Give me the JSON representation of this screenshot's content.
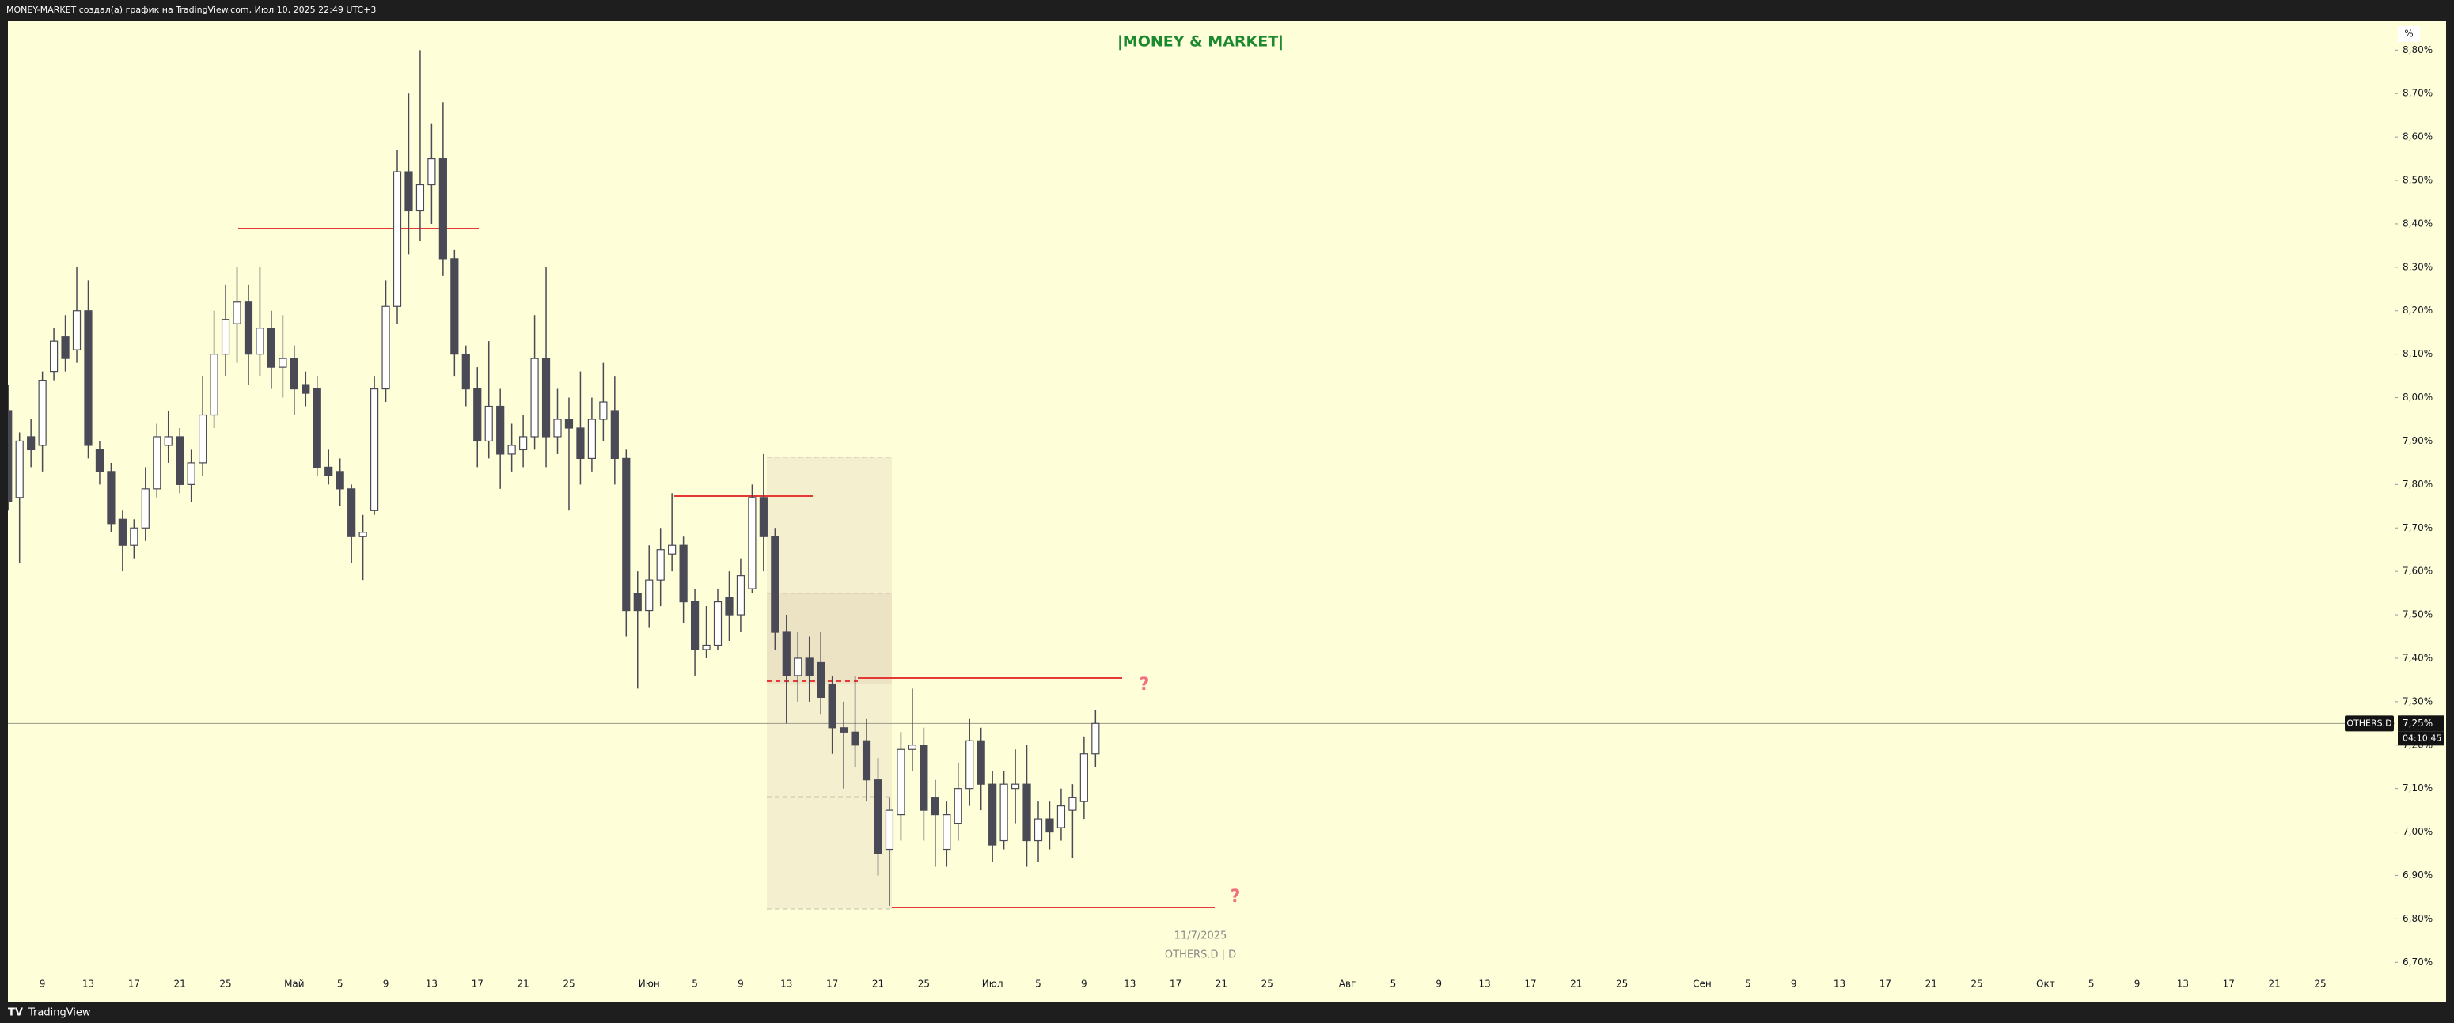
{
  "header": {
    "text": "MONEY-MARKET создал(а) график на TradingView.com, Июл 10, 2025 22:49 UTC+3"
  },
  "footer": {
    "logo": "TradingView"
  },
  "chart_data": {
    "type": "candlestick",
    "title": "|MONEY & MARKET|",
    "symbol": "OTHERS.D",
    "watermark": "OTHERS.D | D",
    "date_label": "11/7/2025",
    "countdown": "04:10:45",
    "unit": "%",
    "annotations": [
      "?",
      "?"
    ],
    "up_color": "#ffffff",
    "down_color": "#4a4a57",
    "grid": false,
    "categories": [
      null,
      null,
      null,
      "9",
      null,
      null,
      null,
      "13",
      null,
      null,
      null,
      "17",
      null,
      null,
      null,
      "21",
      null,
      null,
      null,
      "25",
      null,
      null,
      null,
      null,
      null,
      "Май",
      null,
      null,
      null,
      "5",
      null,
      null,
      null,
      "9",
      null,
      null,
      null,
      "13",
      null,
      null,
      null,
      "17",
      null,
      null,
      null,
      "21",
      null,
      null,
      null,
      "25",
      null,
      null,
      null,
      null,
      null,
      null,
      "Июн",
      null,
      null,
      null,
      "5",
      null,
      null,
      null,
      "9",
      null,
      null,
      null,
      "13",
      null,
      null,
      null,
      "17",
      null,
      null,
      null,
      "21",
      null,
      null,
      null,
      "25",
      null,
      null,
      null,
      null,
      null,
      "Июл",
      null,
      null,
      null,
      "5",
      null,
      null,
      null,
      "9",
      null,
      null,
      null,
      "13",
      null,
      null,
      null,
      "17",
      null,
      null,
      null,
      "21",
      null,
      null,
      null,
      "25",
      null,
      null,
      null,
      null,
      null,
      null,
      "Авг",
      null,
      null,
      null,
      "5",
      null,
      null,
      null,
      "9",
      null,
      null,
      null,
      "13",
      null,
      null,
      null,
      "17",
      null,
      null,
      null,
      "21",
      null,
      null,
      null,
      "25",
      null,
      null,
      null,
      null,
      null,
      null,
      "Сен",
      null,
      null,
      null,
      "5",
      null,
      null,
      null,
      "9",
      null,
      null,
      null,
      "13",
      null,
      null,
      null,
      "17",
      null,
      null,
      null,
      "21",
      null,
      null,
      null,
      "25",
      null,
      null,
      null,
      null,
      null,
      "Окт",
      null,
      null,
      null,
      "5",
      null,
      null,
      null,
      "9",
      null,
      null,
      null,
      "13",
      null,
      null,
      null,
      "17",
      null,
      null,
      null,
      "21",
      null,
      null,
      null,
      "25",
      null,
      null,
      null,
      null,
      null,
      null
    ],
    "open": [
      7.97,
      7.77,
      7.91,
      7.89,
      8.06,
      8.14,
      8.11,
      8.2,
      7.88,
      7.83,
      7.72,
      7.66,
      7.7,
      7.79,
      7.89,
      7.91,
      7.8,
      7.85,
      7.96,
      8.1,
      8.17,
      8.22,
      8.1,
      8.16,
      8.07,
      8.09,
      8.03,
      8.02,
      7.84,
      7.83,
      7.79,
      7.68,
      7.74,
      8.02,
      8.21,
      8.52,
      8.43,
      8.49,
      8.55,
      8.32,
      8.1,
      8.02,
      7.9,
      7.98,
      7.87,
      7.88,
      7.91,
      8.09,
      7.91,
      7.95,
      7.93,
      7.86,
      7.95,
      7.97,
      7.86,
      7.55,
      7.51,
      7.58,
      7.64,
      7.66,
      7.53,
      7.42,
      7.43,
      7.54,
      7.5,
      7.56,
      7.77,
      7.68,
      7.46,
      7.36,
      7.4,
      7.39,
      7.34,
      7.24,
      7.23,
      7.21,
      7.12,
      6.96,
      7.04,
      7.19,
      7.2,
      7.08,
      6.96,
      7.02,
      7.1,
      7.21,
      7.11,
      6.98,
      7.1,
      7.11,
      6.98,
      7.03,
      7.01,
      7.05,
      7.07,
      7.18,
      null,
      null,
      null,
      null,
      null,
      null,
      null,
      null,
      null,
      null,
      null,
      null,
      null,
      null,
      null,
      null,
      null,
      null,
      null,
      null,
      null,
      null,
      null,
      null,
      null,
      null,
      null,
      null,
      null,
      null,
      null,
      null,
      null,
      null,
      null,
      null,
      null,
      null,
      null,
      null,
      null,
      null,
      null,
      null,
      null,
      null,
      null,
      null,
      null,
      null,
      null,
      null,
      null,
      null,
      null,
      null,
      null,
      null,
      null,
      null,
      null,
      null,
      null,
      null,
      null,
      null,
      null,
      null,
      null,
      null,
      null,
      null,
      null,
      null,
      null,
      null,
      null,
      null,
      null,
      null,
      null,
      null,
      null,
      null,
      null,
      null,
      null,
      null,
      null,
      null,
      null,
      null,
      null,
      null,
      null,
      null,
      null,
      null,
      null,
      null,
      null,
      null,
      null,
      null,
      null,
      null,
      null,
      null,
      null,
      null,
      null,
      null,
      null
    ],
    "high": [
      8.03,
      7.92,
      7.95,
      8.06,
      8.16,
      8.19,
      8.3,
      8.27,
      7.9,
      7.85,
      7.74,
      7.72,
      7.84,
      7.94,
      7.97,
      7.93,
      7.88,
      8.05,
      8.2,
      8.26,
      8.3,
      8.26,
      8.3,
      8.2,
      8.19,
      8.12,
      8.06,
      8.05,
      7.88,
      7.86,
      7.8,
      7.73,
      8.05,
      8.27,
      8.57,
      8.7,
      8.8,
      8.63,
      8.68,
      8.34,
      8.12,
      8.07,
      8.13,
      8.02,
      7.94,
      7.96,
      8.19,
      8.3,
      8.02,
      8.0,
      8.06,
      8.0,
      8.08,
      8.05,
      7.88,
      7.6,
      7.66,
      7.7,
      7.78,
      7.68,
      7.56,
      7.52,
      7.56,
      7.6,
      7.63,
      7.8,
      7.87,
      7.7,
      7.5,
      7.46,
      7.45,
      7.46,
      7.36,
      7.3,
      7.36,
      7.26,
      7.17,
      7.08,
      7.23,
      7.33,
      7.24,
      7.12,
      7.07,
      7.16,
      7.26,
      7.24,
      7.14,
      7.14,
      7.19,
      7.2,
      7.07,
      7.07,
      7.1,
      7.11,
      7.22,
      7.28,
      null,
      null,
      null,
      null,
      null,
      null,
      null,
      null,
      null,
      null,
      null,
      null,
      null,
      null,
      null,
      null,
      null,
      null,
      null,
      null,
      null,
      null,
      null,
      null,
      null,
      null,
      null,
      null,
      null,
      null,
      null,
      null,
      null,
      null,
      null,
      null,
      null,
      null,
      null,
      null,
      null,
      null,
      null,
      null,
      null,
      null,
      null,
      null,
      null,
      null,
      null,
      null,
      null,
      null,
      null,
      null,
      null,
      null,
      null,
      null,
      null,
      null,
      null,
      null,
      null,
      null,
      null,
      null,
      null,
      null,
      null,
      null,
      null,
      null,
      null,
      null,
      null,
      null,
      null,
      null,
      null,
      null,
      null,
      null,
      null,
      null,
      null,
      null,
      null,
      null,
      null,
      null,
      null,
      null,
      null,
      null,
      null,
      null,
      null,
      null,
      null,
      null,
      null,
      null,
      null,
      null,
      null,
      null,
      null,
      null,
      null,
      null,
      null
    ],
    "low": [
      7.74,
      7.62,
      7.84,
      7.83,
      8.04,
      8.06,
      8.08,
      7.86,
      7.8,
      7.69,
      7.6,
      7.63,
      7.67,
      7.77,
      7.85,
      7.78,
      7.76,
      7.82,
      7.93,
      8.05,
      8.08,
      8.03,
      8.05,
      8.02,
      8.0,
      7.96,
      7.98,
      7.82,
      7.8,
      7.75,
      7.62,
      7.58,
      7.73,
      7.99,
      8.17,
      8.33,
      8.36,
      8.4,
      8.28,
      8.05,
      7.98,
      7.84,
      7.86,
      7.79,
      7.83,
      7.84,
      7.88,
      7.84,
      7.87,
      7.74,
      7.8,
      7.83,
      7.9,
      7.8,
      7.45,
      7.33,
      7.47,
      7.52,
      7.6,
      7.48,
      7.36,
      7.4,
      7.42,
      7.44,
      7.46,
      7.55,
      7.6,
      7.42,
      7.25,
      7.3,
      7.3,
      7.27,
      7.18,
      7.1,
      7.15,
      7.07,
      6.9,
      6.83,
      6.98,
      7.14,
      6.98,
      6.92,
      6.92,
      6.98,
      7.06,
      7.05,
      6.93,
      6.96,
      7.02,
      6.92,
      6.93,
      6.96,
      6.98,
      6.94,
      7.03,
      7.15,
      null,
      null,
      null,
      null,
      null,
      null,
      null,
      null,
      null,
      null,
      null,
      null,
      null,
      null,
      null,
      null,
      null,
      null,
      null,
      null,
      null,
      null,
      null,
      null,
      null,
      null,
      null,
      null,
      null,
      null,
      null,
      null,
      null,
      null,
      null,
      null,
      null,
      null,
      null,
      null,
      null,
      null,
      null,
      null,
      null,
      null,
      null,
      null,
      null,
      null,
      null,
      null,
      null,
      null,
      null,
      null,
      null,
      null,
      null,
      null,
      null,
      null,
      null,
      null,
      null,
      null,
      null,
      null,
      null,
      null,
      null,
      null,
      null,
      null,
      null,
      null,
      null,
      null,
      null,
      null,
      null,
      null,
      null,
      null,
      null,
      null,
      null,
      null,
      null,
      null,
      null,
      null,
      null,
      null,
      null,
      null,
      null,
      null,
      null,
      null,
      null,
      null,
      null,
      null,
      null,
      null,
      null,
      null,
      null,
      null,
      null,
      null,
      null
    ],
    "close": [
      7.76,
      7.9,
      7.88,
      8.04,
      8.13,
      8.09,
      8.2,
      7.89,
      7.83,
      7.71,
      7.66,
      7.7,
      7.79,
      7.91,
      7.91,
      7.8,
      7.85,
      7.96,
      8.1,
      8.18,
      8.22,
      8.1,
      8.16,
      8.07,
      8.09,
      8.02,
      8.01,
      7.84,
      7.82,
      7.79,
      7.68,
      7.69,
      8.02,
      8.21,
      8.52,
      8.43,
      8.49,
      8.55,
      8.32,
      8.1,
      8.02,
      7.9,
      7.98,
      7.87,
      7.89,
      7.91,
      8.09,
      7.91,
      7.95,
      7.93,
      7.86,
      7.95,
      7.99,
      7.86,
      7.51,
      7.51,
      7.58,
      7.65,
      7.66,
      7.53,
      7.42,
      7.43,
      7.53,
      7.5,
      7.59,
      7.77,
      7.68,
      7.46,
      7.36,
      7.4,
      7.36,
      7.31,
      7.24,
      7.23,
      7.2,
      7.12,
      6.95,
      7.05,
      7.19,
      7.2,
      7.05,
      7.04,
      7.04,
      7.1,
      7.21,
      7.11,
      6.97,
      7.11,
      7.11,
      6.98,
      7.03,
      7.0,
      7.06,
      7.08,
      7.18,
      7.25,
      null,
      null,
      null,
      null,
      null,
      null,
      null,
      null,
      null,
      null,
      null,
      null,
      null,
      null,
      null,
      null,
      null,
      null,
      null,
      null,
      null,
      null,
      null,
      null,
      null,
      null,
      null,
      null,
      null,
      null,
      null,
      null,
      null,
      null,
      null,
      null,
      null,
      null,
      null,
      null,
      null,
      null,
      null,
      null,
      null,
      null,
      null,
      null,
      null,
      null,
      null,
      null,
      null,
      null,
      null,
      null,
      null,
      null,
      null,
      null,
      null,
      null,
      null,
      null,
      null,
      null,
      null,
      null,
      null,
      null,
      null,
      null,
      null,
      null,
      null,
      null,
      null,
      null,
      null,
      null,
      null,
      null,
      null,
      null,
      null,
      null,
      null,
      null,
      null,
      null,
      null,
      null,
      null,
      null,
      null,
      null,
      null,
      null,
      null,
      null,
      null,
      null,
      null,
      null,
      null,
      null,
      null,
      null,
      null,
      null,
      null,
      null,
      null
    ],
    "ylim": [
      6.675,
      8.868
    ],
    "yticks": [
      {
        "value": 6.7,
        "label": "6,70%"
      },
      {
        "value": 6.8,
        "label": "6,80%"
      },
      {
        "value": 6.9,
        "label": "6,90%"
      },
      {
        "value": 7.0,
        "label": "7,00%"
      },
      {
        "value": 7.1,
        "label": "7,10%"
      },
      {
        "value": 7.2,
        "label": "7,20%"
      },
      {
        "value": 7.3,
        "label": "7,30%"
      },
      {
        "value": 7.4,
        "label": "7,40%"
      },
      {
        "value": 7.5,
        "label": "7,50%"
      },
      {
        "value": 7.6,
        "label": "7,60%"
      },
      {
        "value": 7.7,
        "label": "7,70%"
      },
      {
        "value": 7.8,
        "label": "7,80%"
      },
      {
        "value": 7.9,
        "label": "7,90%"
      },
      {
        "value": 8.0,
        "label": "8,00%"
      },
      {
        "value": 8.1,
        "label": "8,10%"
      },
      {
        "value": 8.2,
        "label": "8,20%"
      },
      {
        "value": 8.3,
        "label": "8,30%"
      },
      {
        "value": 8.4,
        "label": "8,40%"
      },
      {
        "value": 8.5,
        "label": "8,50%"
      },
      {
        "value": 8.6,
        "label": "8,60%"
      },
      {
        "value": 8.7,
        "label": "8,70%"
      },
      {
        "value": 8.8,
        "label": "8,80%"
      }
    ],
    "last_price": {
      "value": 7.25,
      "label": "7,25%"
    }
  }
}
